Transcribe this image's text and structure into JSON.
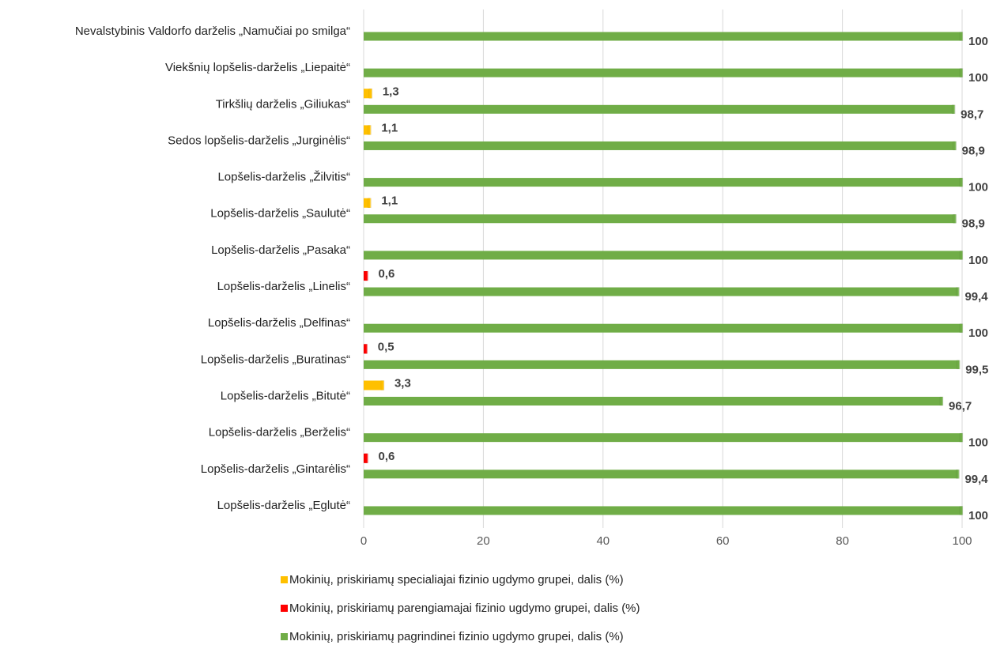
{
  "chart_data": {
    "type": "bar",
    "orientation": "horizontal",
    "categories": [
      "Nevalstybinis Valdorfo darželis „Namučiai po smilga“",
      "Viekšnių lopšelis-darželis „Liepaitė“",
      "Tirkšlių darželis „Giliukas“",
      "Sedos lopšelis-darželis „Jurginėlis“",
      "Lopšelis-darželis „Žilvitis“",
      "Lopšelis-darželis „Saulutė“",
      "Lopšelis-darželis „Pasaka“",
      "Lopšelis-darželis „Linelis“",
      "Lopšelis-darželis „Delfinas“",
      "Lopšelis-darželis „Buratinas“",
      "Lopšelis-darželis „Bitutė“",
      "Lopšelis-darželis „Berželis“",
      "Lopšelis-darželis „Gintarėlis“",
      "Lopšelis-darželis „Eglutė“"
    ],
    "series": [
      {
        "name": "Mokinių, priskiriamų specialiajai fizinio ugdymo grupei, dalis (%)",
        "color": "#ffc000",
        "values": [
          null,
          null,
          1.3,
          1.1,
          null,
          1.1,
          null,
          null,
          null,
          null,
          3.3,
          null,
          null,
          null
        ],
        "value_labels": [
          null,
          null,
          "1,3",
          "1,1",
          null,
          "1,1",
          null,
          null,
          null,
          null,
          "3,3",
          null,
          null,
          null
        ]
      },
      {
        "name": "Mokinių, priskiriamų parengiamajai fizinio ugdymo grupei, dalis (%)",
        "color": "#ff0000",
        "values": [
          null,
          null,
          null,
          null,
          null,
          null,
          null,
          0.6,
          null,
          0.5,
          null,
          null,
          0.6,
          null
        ],
        "value_labels": [
          null,
          null,
          null,
          null,
          null,
          null,
          null,
          "0,6",
          null,
          "0,5",
          null,
          null,
          "0,6",
          null
        ]
      },
      {
        "name": "Mokinių, priskiriamų pagrindinei fizinio ugdymo grupei, dalis (%)",
        "color": "#70ad47",
        "values": [
          100,
          100,
          98.7,
          98.9,
          100,
          98.9,
          100,
          99.4,
          100,
          99.5,
          96.7,
          100,
          99.4,
          100
        ],
        "value_labels": [
          "100",
          "100",
          "98,7",
          "98,9",
          "100",
          "98,9",
          "100",
          "99,4",
          "100",
          "99,5",
          "96,7",
          "100",
          "99,4",
          "100"
        ]
      }
    ],
    "xlim": [
      0,
      100
    ],
    "xticks": [
      0,
      20,
      40,
      60,
      80,
      100
    ],
    "grid": true,
    "legend": "bottom"
  }
}
